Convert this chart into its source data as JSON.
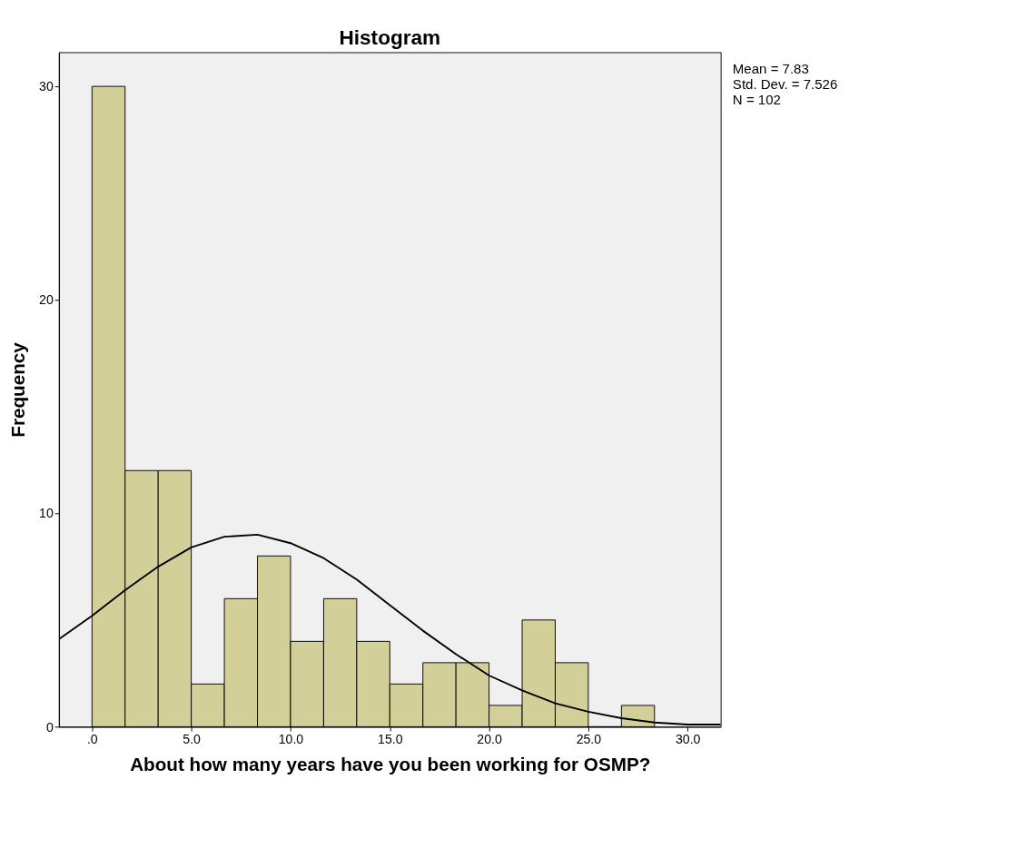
{
  "chart_data": {
    "type": "histogram",
    "title": "Histogram",
    "xlabel": "About how many years have you been working for OSMP?",
    "ylabel": "Frequency",
    "bins": [
      0,
      1.667,
      3.333,
      5,
      6.667,
      8.333,
      10,
      11.667,
      13.333,
      15,
      16.667,
      18.333,
      20,
      21.667,
      23.333,
      25,
      26.667,
      28.333
    ],
    "values": [
      30,
      12,
      12,
      2,
      6,
      8,
      4,
      6,
      4,
      2,
      3,
      3,
      1,
      5,
      3,
      0,
      1
    ],
    "color": "#d3cf99",
    "series": [
      {
        "type": "line",
        "color": "#000000",
        "x": [
          -1.667,
          0,
          1.667,
          3.333,
          5,
          6.667,
          8.333,
          10,
          11.667,
          13.333,
          15,
          16.667,
          18.333,
          20,
          21.667,
          23.333,
          25,
          26.667,
          28.333,
          30,
          31.667
        ],
        "values": [
          4.1,
          5.2,
          6.4,
          7.5,
          8.4,
          8.9,
          9.0,
          8.6,
          7.9,
          6.9,
          5.7,
          4.5,
          3.4,
          2.4,
          1.7,
          1.1,
          0.7,
          0.4,
          0.2,
          0.1,
          0.1
        ]
      }
    ],
    "xlim": [
      -1.667,
      31.667
    ],
    "ylim": [
      0,
      31.6
    ],
    "xticks": [
      {
        "value": 0,
        "label": ".0"
      },
      {
        "value": 5,
        "label": "5.0"
      },
      {
        "value": 10,
        "label": "10.0"
      },
      {
        "value": 15,
        "label": "15.0"
      },
      {
        "value": 20,
        "label": "20.0"
      },
      {
        "value": 25,
        "label": "25.0"
      },
      {
        "value": 30,
        "label": "30.0"
      }
    ],
    "yticks": [
      0,
      10,
      20,
      30
    ],
    "grid": false,
    "annotations": [
      "Mean = 7.83",
      "Std. Dev. = 7.526",
      "N = 102"
    ]
  }
}
